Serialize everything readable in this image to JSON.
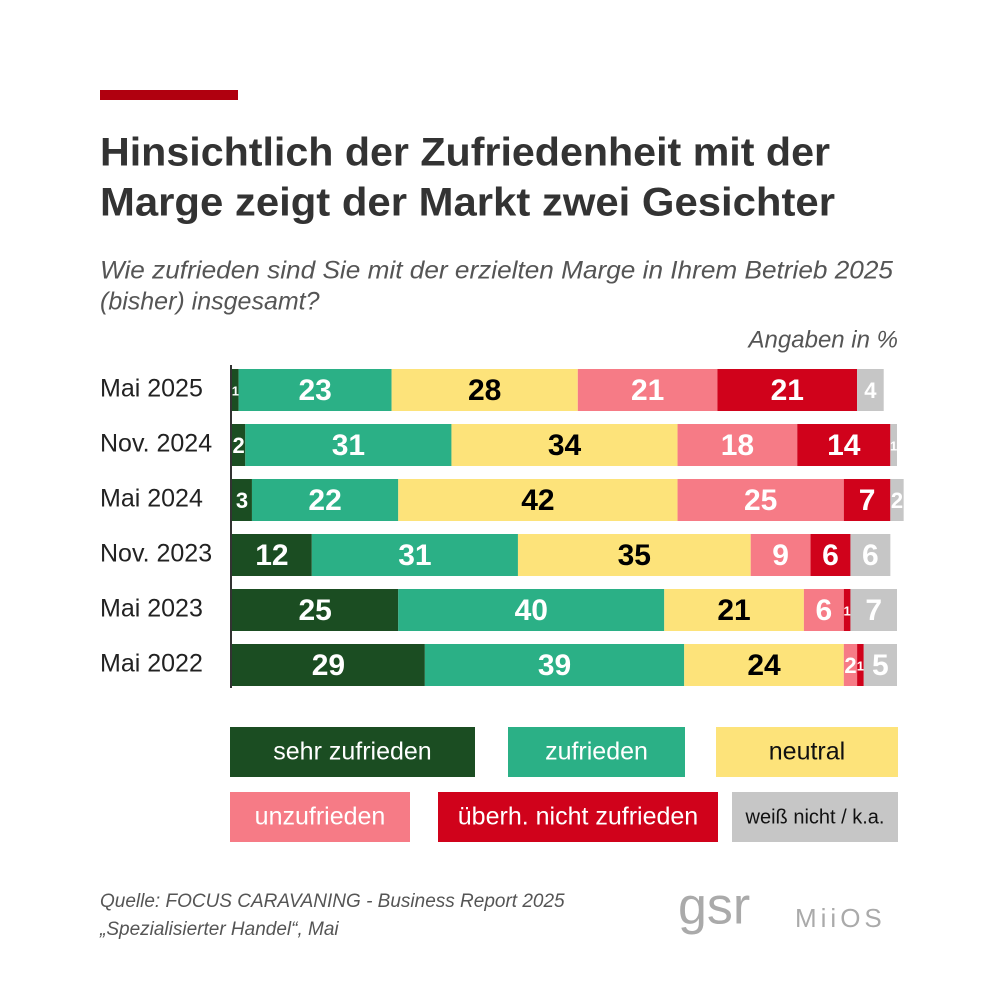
{
  "chart_data": {
    "type": "stacked-bar-horizontal",
    "title": [
      "Hinsichtlich der Zufriedenheit mit der",
      "Marge zeigt der Markt zwei Gesichter"
    ],
    "subtitle": [
      "Wie zufrieden sind Sie mit der erzielten Marge in Ihrem Betrieb 2025",
      "(bisher) insgesamt?"
    ],
    "note": "Angaben in %",
    "categories": [
      "Mai 2025",
      "Nov. 2024",
      "Mai 2024",
      "Nov. 2023",
      "Mai 2023",
      "Mai 2022"
    ],
    "series": [
      {
        "name": "sehr zufrieden",
        "color": "#1b4d22",
        "label_color": "#ffffff",
        "values": [
          1,
          2,
          3,
          12,
          25,
          29
        ]
      },
      {
        "name": "zufrieden",
        "color": "#2bb086",
        "label_color": "#ffffff",
        "values": [
          23,
          31,
          22,
          31,
          40,
          39
        ]
      },
      {
        "name": "neutral",
        "color": "#fde37a",
        "label_color": "#000000",
        "values": [
          28,
          34,
          42,
          35,
          21,
          24
        ]
      },
      {
        "name": "unzufrieden",
        "color": "#f67b86",
        "label_color": "#ffffff",
        "values": [
          21,
          18,
          25,
          9,
          6,
          2
        ]
      },
      {
        "name": "überh. nicht zufrieden",
        "color": "#d0021b",
        "label_color": "#ffffff",
        "values": [
          21,
          14,
          7,
          6,
          1,
          1
        ]
      },
      {
        "name": "weiß nicht / k.a.",
        "color": "#c6c6c6",
        "label_color": "#ffffff",
        "values": [
          4,
          1,
          2,
          6,
          7,
          5
        ]
      }
    ],
    "source": [
      "Quelle: FOCUS CARAVANING - Business Report 2025",
      "„Spezialisierter Handel“, Mai"
    ],
    "logos": [
      "gsr",
      "MiiOS"
    ]
  }
}
